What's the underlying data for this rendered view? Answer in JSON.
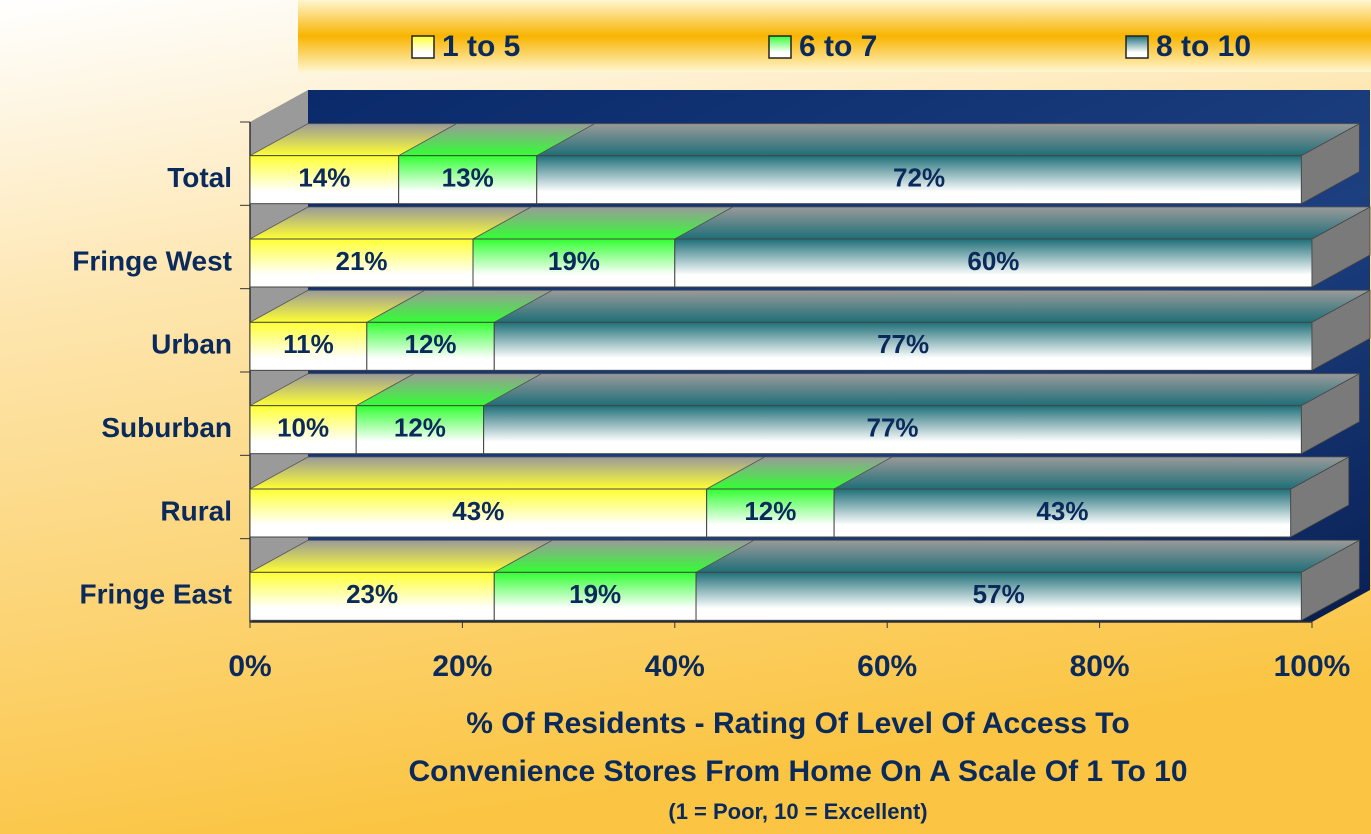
{
  "chart_data": {
    "type": "stacked_bar_horizontal",
    "xlabel": [
      "% Of Residents - Rating Of Level Of Access To",
      "Convenience Stores From Home On A Scale Of 1 To 10"
    ],
    "subtitle": "(1 = Poor, 10 = Excellent)",
    "categories": [
      "Total",
      "Fringe West",
      "Urban",
      "Suburban",
      "Rural",
      "Fringe East"
    ],
    "series": [
      {
        "name": "1 to 5",
        "color": "#ffff33",
        "values": [
          14,
          21,
          11,
          10,
          43,
          23
        ],
        "value_labels": [
          "14%",
          "21%",
          "11%",
          "10%",
          "43%",
          "23%"
        ]
      },
      {
        "name": "6 to 7",
        "color": "#33ff33",
        "values": [
          13,
          19,
          12,
          12,
          12,
          19
        ],
        "value_labels": [
          "13%",
          "19%",
          "12%",
          "12%",
          "12%",
          "19%"
        ]
      },
      {
        "name": "8 to 10",
        "color": "#1f6f78",
        "values": [
          72,
          60,
          77,
          77,
          43,
          57
        ],
        "value_labels": [
          "72%",
          "60%",
          "77%",
          "77%",
          "43%",
          "57%"
        ]
      }
    ],
    "xlim": [
      0,
      100
    ],
    "xticks": [
      {
        "value": 0,
        "label": "0%"
      },
      {
        "value": 20,
        "label": "20%"
      },
      {
        "value": 40,
        "label": "40%"
      },
      {
        "value": 60,
        "label": "60%"
      },
      {
        "value": 80,
        "label": "80%"
      },
      {
        "value": 100,
        "label": "100%"
      }
    ],
    "legend": "top"
  }
}
